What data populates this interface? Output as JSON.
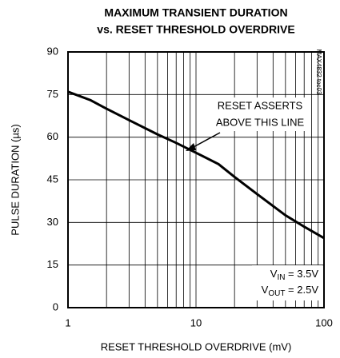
{
  "chart_data": {
    "type": "line",
    "log_x": true,
    "title": [
      "MAXIMUM TRANSIENT DURATION",
      "vs. RESET THRESHOLD OVERDRIVE"
    ],
    "xlabel": "RESET THRESHOLD OVERDRIVE (mV)",
    "ylabel": "PULSE DURATION (µs)",
    "side_note": "MAX4832 toc03",
    "x": [
      1,
      1.5,
      2,
      3,
      5,
      7,
      10,
      15,
      20,
      30,
      50,
      70,
      100
    ],
    "series": [
      {
        "color": "#000000",
        "values": [
          76,
          73,
          70,
          66,
          61,
          58,
          54.5,
          50.5,
          46,
          40,
          32.5,
          28.5,
          24.5
        ]
      }
    ],
    "xlim": [
      1,
      100
    ],
    "xticks": [
      1,
      10,
      100
    ],
    "x_minor_ticks": [
      2,
      3,
      4,
      5,
      6,
      7,
      8,
      9,
      20,
      30,
      40,
      50,
      60,
      70,
      80,
      90
    ],
    "ylim": [
      0,
      90
    ],
    "yticks": [
      0,
      15,
      30,
      45,
      60,
      75,
      90
    ],
    "grid": true,
    "annotation": [
      "RESET ASSERTS",
      "ABOVE THIS LINE"
    ],
    "conditions": [
      {
        "base": "V",
        "sub": "IN",
        "rest": " = 3.5V"
      },
      {
        "base": "V",
        "sub": "OUT",
        "rest": " = 2.5V"
      }
    ]
  }
}
